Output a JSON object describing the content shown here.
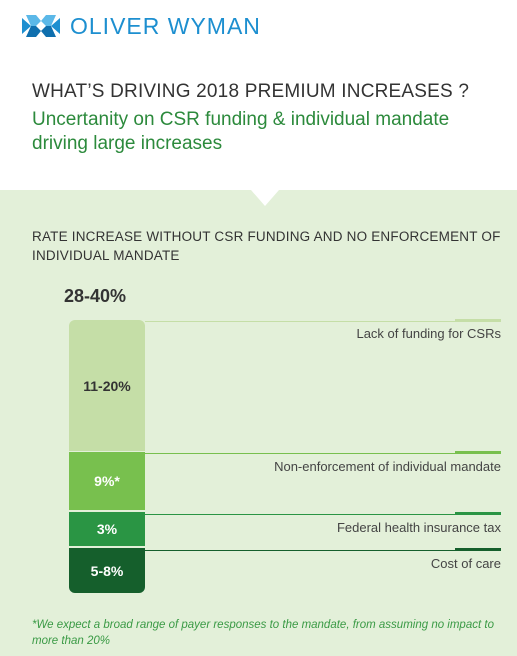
{
  "logo": {
    "text": "OLIVER WYMAN"
  },
  "header": {
    "title": "WHAT’S DRIVING 2018 PREMIUM INCREASES ?",
    "subtitle": "Uncertanity on CSR funding & individual mandate driving large increases"
  },
  "chart_data": {
    "type": "bar",
    "title": "RATE INCREASE WITHOUT CSR FUNDING AND NO ENFORCEMENT OF INDIVIDUAL MANDATE",
    "total_label": "28-40%",
    "stacked": true,
    "segments": [
      {
        "name": "Lack of funding for CSRs",
        "label": "11-20%",
        "range": [
          11,
          20
        ],
        "color": "#c5dea7"
      },
      {
        "name": "Non-enforcement of individual mandate",
        "label": "9%*",
        "value": 9,
        "color": "#78c04e"
      },
      {
        "name": "Federal health insurance tax",
        "label": "3%",
        "value": 3,
        "color": "#2a9544"
      },
      {
        "name": "Cost of care",
        "label": "5-8%",
        "range": [
          5,
          8
        ],
        "color": "#155f2c"
      }
    ]
  },
  "footnote": "*We expect a broad range of payer responses to the mandate, from assuming no impact to more than 20%",
  "colors": {
    "brand": "#1d8fd0",
    "accent_green": "#2c8a3c",
    "panel": "#e3f0d9"
  }
}
